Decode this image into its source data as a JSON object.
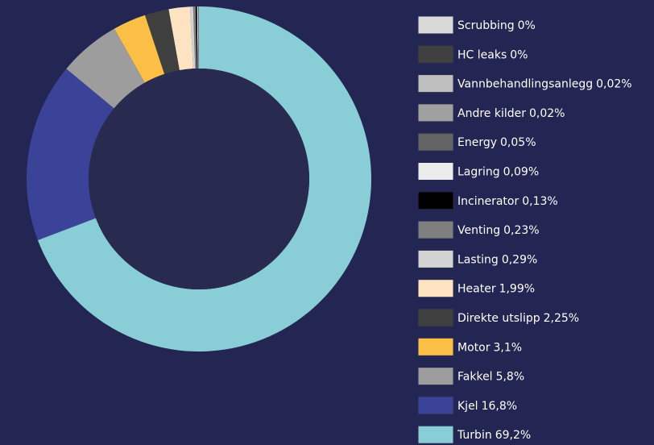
{
  "chart_data": {
    "type": "donut",
    "categories": [
      "Scrubbing",
      "HC leaks",
      "Vannbehandlingsanlegg",
      "Andre kilder",
      "Energy",
      "Lagring",
      "Incinerator",
      "Venting",
      "Lasting",
      "Heater",
      "Direkte utslipp",
      "Motor",
      "Fakkel",
      "Kjel",
      "Turbin"
    ],
    "values": [
      0,
      0,
      0.02,
      0.02,
      0.05,
      0.09,
      0.13,
      0.23,
      0.29,
      1.99,
      2.25,
      3.1,
      5.8,
      16.8,
      69.2
    ],
    "value_labels": [
      "0%",
      "0%",
      "0,02%",
      "0,02%",
      "0,05%",
      "0,09%",
      "0,13%",
      "0,23%",
      "0,29%",
      "1,99%",
      "2,25%",
      "3,1%",
      "5,8%",
      "16,8%",
      "69,2%"
    ],
    "colors": [
      "#d9d9d9",
      "#404040",
      "#bfbfbf",
      "#a0a0a0",
      "#636363",
      "#ececec",
      "#000000",
      "#7f7f7f",
      "#d3d3d3",
      "#fde3c2",
      "#3f3f3f",
      "#fbbf45",
      "#9d9d9d",
      "#3b4399",
      "#89cdd6"
    ],
    "legend": "right"
  }
}
